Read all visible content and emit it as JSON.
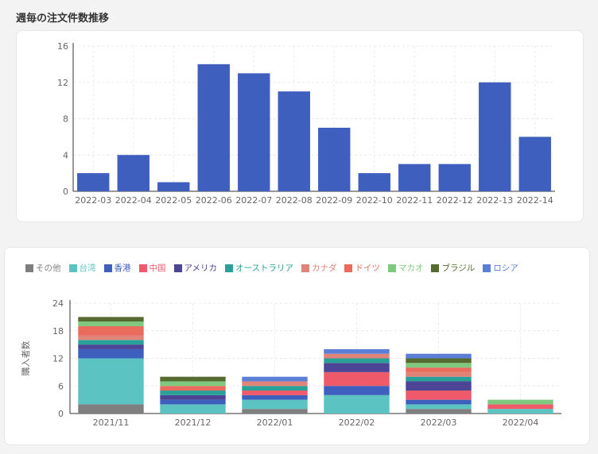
{
  "title": "週毎の注文件数推移",
  "chart_data": [
    {
      "type": "bar",
      "title": "週毎の注文件数推移",
      "categories": [
        "2022-03",
        "2022-04",
        "2022-05",
        "2022-06",
        "2022-07",
        "2022-08",
        "2022-09",
        "2022-10",
        "2022-11",
        "2022-12",
        "2022-13",
        "2022-14"
      ],
      "values": [
        2,
        4,
        1,
        14,
        13,
        11,
        7,
        2,
        3,
        3,
        12,
        6
      ],
      "ylim": [
        0,
        16
      ],
      "yticks": [
        0,
        4,
        8,
        12,
        16
      ],
      "color": "#3f5fbf",
      "grid": true
    },
    {
      "type": "bar",
      "stacked": true,
      "ylabel": "購入者数",
      "categories": [
        "2021/11",
        "2021/12",
        "2022/01",
        "2022/02",
        "2022/03",
        "2022/04"
      ],
      "ylim": [
        0,
        24
      ],
      "yticks": [
        0,
        6,
        12,
        18,
        24
      ],
      "grid": true,
      "legend_position": "top",
      "series": [
        {
          "name": "その他",
          "color": "#7f7f7f",
          "values": [
            2,
            0,
            1,
            0,
            1,
            0
          ]
        },
        {
          "name": "台湾",
          "color": "#5bc4c2",
          "values": [
            10,
            2,
            2,
            4,
            1,
            1
          ]
        },
        {
          "name": "香港",
          "color": "#3f5fbf",
          "values": [
            2,
            1,
            1,
            2,
            1,
            0
          ]
        },
        {
          "name": "中国",
          "color": "#ee5a6a",
          "values": [
            0,
            0,
            1,
            3,
            2,
            1
          ]
        },
        {
          "name": "アメリカ",
          "color": "#4c4596",
          "values": [
            1,
            1,
            0,
            2,
            2,
            0
          ]
        },
        {
          "name": "オーストラリア",
          "color": "#2aa198",
          "values": [
            1,
            1,
            1,
            1,
            1,
            0
          ]
        },
        {
          "name": "カナダ",
          "color": "#e0847a",
          "values": [
            1,
            0,
            1,
            1,
            1,
            0
          ]
        },
        {
          "name": "ドイツ",
          "color": "#e96b5c",
          "values": [
            2,
            1,
            0,
            0,
            1,
            0
          ]
        },
        {
          "name": "マカオ",
          "color": "#7fc97f",
          "values": [
            1,
            1,
            0,
            0,
            1,
            1
          ]
        },
        {
          "name": "ブラジル",
          "color": "#556b2f",
          "values": [
            1,
            1,
            0,
            0,
            1,
            0
          ]
        },
        {
          "name": "ロシア",
          "color": "#5b7fd6",
          "values": [
            0,
            0,
            1,
            1,
            1,
            0
          ]
        }
      ]
    }
  ]
}
